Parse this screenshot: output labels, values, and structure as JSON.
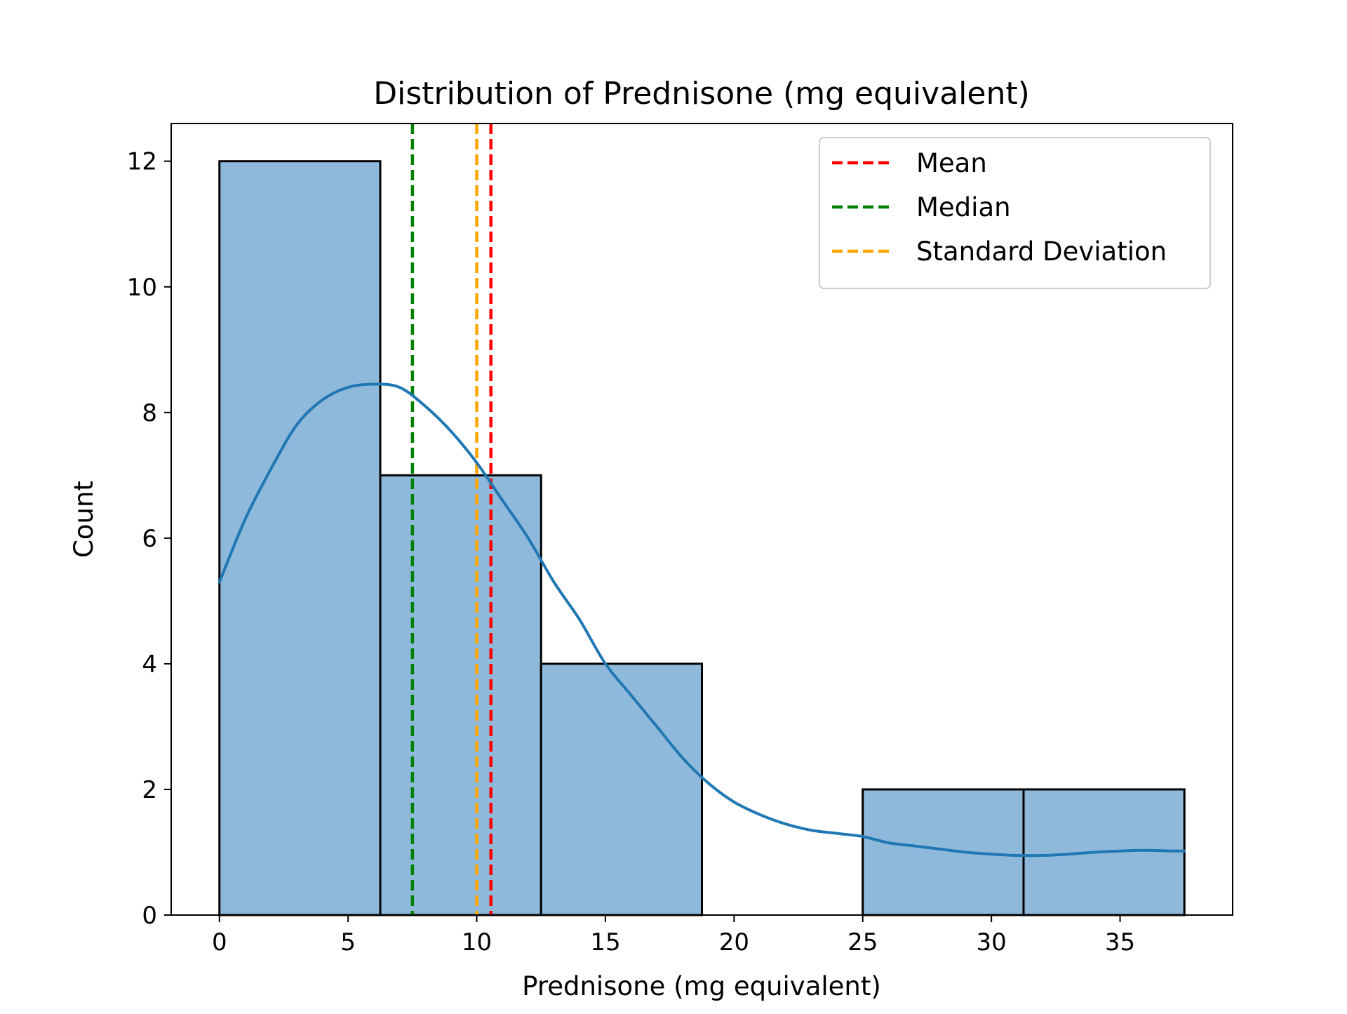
{
  "chart_data": {
    "type": "bar",
    "title": "Distribution of Prednisone  (mg equivalent)",
    "xlabel": "Prednisone  (mg equivalent)",
    "ylabel": "Count",
    "xlim": [
      -1.875,
      39.375
    ],
    "ylim": [
      0,
      12.6
    ],
    "x_ticks": [
      0,
      5,
      10,
      15,
      20,
      25,
      30,
      35
    ],
    "y_ticks": [
      0,
      2,
      4,
      6,
      8,
      10,
      12
    ],
    "grid": false,
    "bins": [
      {
        "x0": 0,
        "x1": 6.25,
        "count": 12
      },
      {
        "x0": 6.25,
        "x1": 12.5,
        "count": 7
      },
      {
        "x0": 12.5,
        "x1": 18.75,
        "count": 4
      },
      {
        "x0": 18.75,
        "x1": 25,
        "count": 0
      },
      {
        "x0": 25,
        "x1": 31.25,
        "count": 2
      },
      {
        "x0": 31.25,
        "x1": 37.5,
        "count": 2
      }
    ],
    "kde": {
      "x": [
        0,
        1,
        2,
        3,
        4,
        5,
        6,
        7,
        8,
        9,
        10,
        11,
        12,
        13,
        14,
        15,
        16,
        17,
        18,
        19,
        20,
        21,
        22,
        23,
        24,
        25,
        26,
        27,
        28,
        29,
        30,
        31,
        32,
        33,
        34,
        35,
        36,
        37,
        37.5
      ],
      "y": [
        5.3,
        6.3,
        7.1,
        7.8,
        8.2,
        8.4,
        8.45,
        8.4,
        8.1,
        7.7,
        7.2,
        6.6,
        6.0,
        5.3,
        4.7,
        4.0,
        3.5,
        3.0,
        2.5,
        2.1,
        1.8,
        1.6,
        1.45,
        1.35,
        1.3,
        1.25,
        1.15,
        1.1,
        1.05,
        1.0,
        0.97,
        0.95,
        0.95,
        0.97,
        1.0,
        1.02,
        1.03,
        1.02,
        1.02
      ]
    },
    "vlines": [
      {
        "name": "Mean",
        "x": 10.55,
        "color": "#ff0000"
      },
      {
        "name": "Median",
        "x": 7.5,
        "color": "#008000"
      },
      {
        "name": "Standard Deviation",
        "x": 10.0,
        "color": "#ffa500"
      }
    ],
    "bar_fill": "#8fb9da",
    "bar_edge": "#000000",
    "kde_color": "#1f77b4",
    "legend_position": "upper right"
  }
}
